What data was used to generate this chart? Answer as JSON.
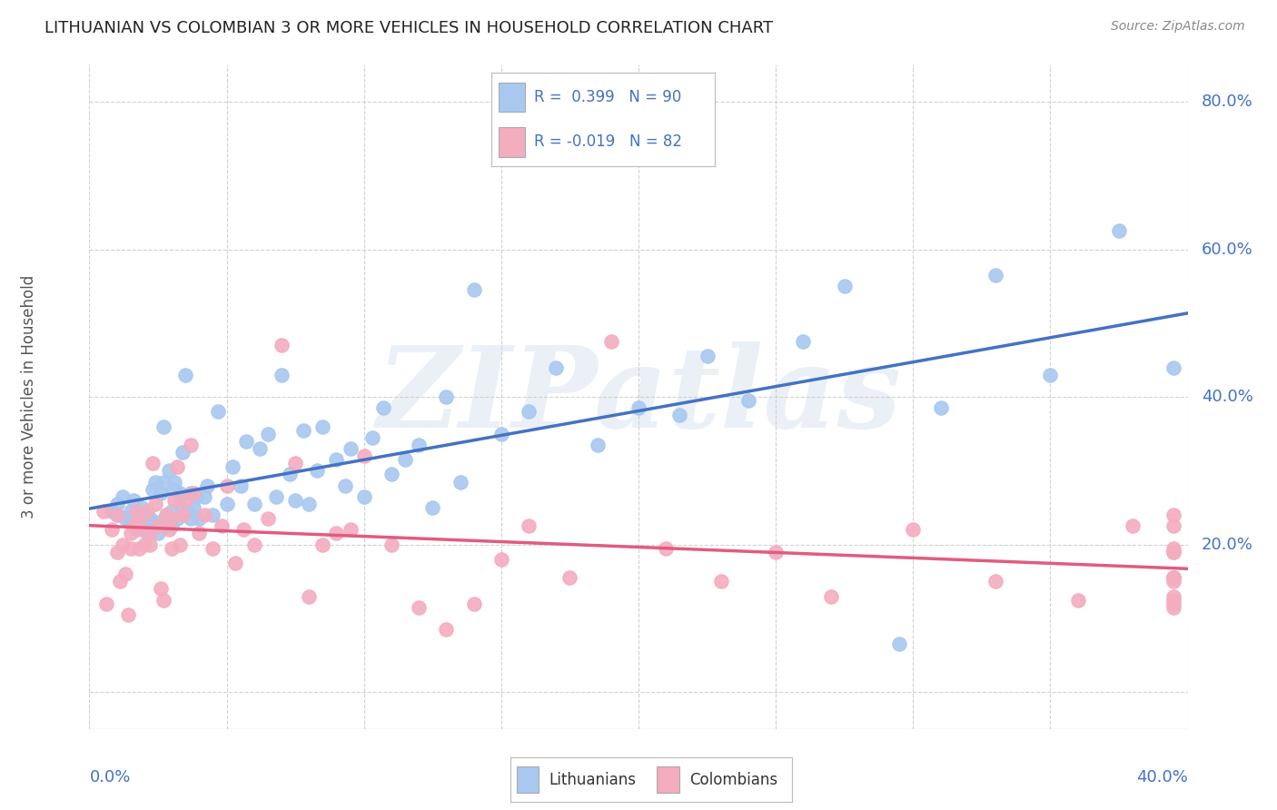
{
  "title": "LITHUANIAN VS COLOMBIAN 3 OR MORE VEHICLES IN HOUSEHOLD CORRELATION CHART",
  "source": "Source: ZipAtlas.com",
  "ylabel": "3 or more Vehicles in Household",
  "xlim": [
    0.0,
    0.4
  ],
  "ylim": [
    -0.05,
    0.85
  ],
  "yticks": [
    0.0,
    0.2,
    0.4,
    0.6,
    0.8
  ],
  "ytick_labels": [
    "",
    "20.0%",
    "40.0%",
    "60.0%",
    "80.0%"
  ],
  "xticks": [
    0.0,
    0.05,
    0.1,
    0.15,
    0.2,
    0.25,
    0.3,
    0.35,
    0.4
  ],
  "blue_color": "#A8C8F0",
  "blue_line_color": "#4472C4",
  "pink_color": "#F4ACBF",
  "pink_line_color": "#E05C80",
  "label_color": "#4472C4",
  "title_color": "#222222",
  "source_color": "#888888",
  "ylabel_color": "#555555",
  "grid_color": "#cccccc",
  "background": "#ffffff",
  "watermark": "ZIPatlas",
  "watermark_color": "#dde6f0",
  "legend_label_blue": "Lithuanians",
  "legend_label_pink": "Colombians",
  "R_blue": "0.399",
  "N_blue": "90",
  "R_pink": "-0.019",
  "N_pink": "82",
  "blue_scatter_x": [
    0.008,
    0.01,
    0.01,
    0.012,
    0.013,
    0.015,
    0.015,
    0.016,
    0.017,
    0.018,
    0.019,
    0.02,
    0.02,
    0.021,
    0.022,
    0.022,
    0.023,
    0.023,
    0.024,
    0.025,
    0.025,
    0.026,
    0.027,
    0.027,
    0.028,
    0.028,
    0.029,
    0.03,
    0.03,
    0.031,
    0.031,
    0.032,
    0.033,
    0.033,
    0.034,
    0.035,
    0.036,
    0.037,
    0.037,
    0.038,
    0.039,
    0.04,
    0.042,
    0.043,
    0.045,
    0.047,
    0.05,
    0.052,
    0.055,
    0.057,
    0.06,
    0.062,
    0.065,
    0.068,
    0.07,
    0.073,
    0.075,
    0.078,
    0.08,
    0.083,
    0.085,
    0.09,
    0.093,
    0.095,
    0.1,
    0.103,
    0.107,
    0.11,
    0.115,
    0.12,
    0.125,
    0.13,
    0.135,
    0.14,
    0.15,
    0.16,
    0.17,
    0.185,
    0.2,
    0.215,
    0.225,
    0.24,
    0.26,
    0.275,
    0.295,
    0.31,
    0.33,
    0.35,
    0.375,
    0.395
  ],
  "blue_scatter_y": [
    0.245,
    0.24,
    0.255,
    0.265,
    0.235,
    0.23,
    0.245,
    0.26,
    0.22,
    0.235,
    0.25,
    0.225,
    0.24,
    0.215,
    0.225,
    0.235,
    0.225,
    0.275,
    0.285,
    0.215,
    0.23,
    0.27,
    0.285,
    0.36,
    0.225,
    0.24,
    0.3,
    0.225,
    0.245,
    0.275,
    0.285,
    0.235,
    0.255,
    0.27,
    0.325,
    0.43,
    0.245,
    0.27,
    0.235,
    0.25,
    0.265,
    0.235,
    0.265,
    0.28,
    0.24,
    0.38,
    0.255,
    0.305,
    0.28,
    0.34,
    0.255,
    0.33,
    0.35,
    0.265,
    0.43,
    0.295,
    0.26,
    0.355,
    0.255,
    0.3,
    0.36,
    0.315,
    0.28,
    0.33,
    0.265,
    0.345,
    0.385,
    0.295,
    0.315,
    0.335,
    0.25,
    0.4,
    0.285,
    0.545,
    0.35,
    0.38,
    0.44,
    0.335,
    0.385,
    0.375,
    0.455,
    0.395,
    0.475,
    0.55,
    0.065,
    0.385,
    0.565,
    0.43,
    0.625,
    0.44
  ],
  "pink_scatter_x": [
    0.005,
    0.006,
    0.008,
    0.01,
    0.01,
    0.011,
    0.012,
    0.013,
    0.014,
    0.015,
    0.015,
    0.016,
    0.017,
    0.018,
    0.018,
    0.019,
    0.02,
    0.021,
    0.022,
    0.022,
    0.023,
    0.024,
    0.025,
    0.026,
    0.027,
    0.028,
    0.029,
    0.03,
    0.03,
    0.031,
    0.032,
    0.033,
    0.034,
    0.035,
    0.037,
    0.038,
    0.04,
    0.042,
    0.045,
    0.048,
    0.05,
    0.053,
    0.056,
    0.06,
    0.065,
    0.07,
    0.075,
    0.08,
    0.085,
    0.09,
    0.095,
    0.1,
    0.11,
    0.12,
    0.13,
    0.14,
    0.15,
    0.16,
    0.175,
    0.19,
    0.21,
    0.23,
    0.25,
    0.27,
    0.3,
    0.33,
    0.36,
    0.38,
    0.395,
    0.395,
    0.395,
    0.395,
    0.395,
    0.395,
    0.395,
    0.395,
    0.395,
    0.395,
    0.395,
    0.395,
    0.395,
    0.395
  ],
  "pink_scatter_y": [
    0.245,
    0.12,
    0.22,
    0.24,
    0.19,
    0.15,
    0.2,
    0.16,
    0.105,
    0.195,
    0.215,
    0.225,
    0.245,
    0.195,
    0.23,
    0.22,
    0.2,
    0.245,
    0.2,
    0.215,
    0.31,
    0.255,
    0.225,
    0.14,
    0.125,
    0.24,
    0.22,
    0.195,
    0.235,
    0.26,
    0.305,
    0.2,
    0.24,
    0.26,
    0.335,
    0.27,
    0.215,
    0.24,
    0.195,
    0.225,
    0.28,
    0.175,
    0.22,
    0.2,
    0.235,
    0.47,
    0.31,
    0.13,
    0.2,
    0.215,
    0.22,
    0.32,
    0.2,
    0.115,
    0.085,
    0.12,
    0.18,
    0.225,
    0.155,
    0.475,
    0.195,
    0.15,
    0.19,
    0.13,
    0.22,
    0.15,
    0.125,
    0.225,
    0.155,
    0.195,
    0.24,
    0.12,
    0.15,
    0.19,
    0.115,
    0.155,
    0.19,
    0.125,
    0.155,
    0.225,
    0.13,
    0.155
  ]
}
